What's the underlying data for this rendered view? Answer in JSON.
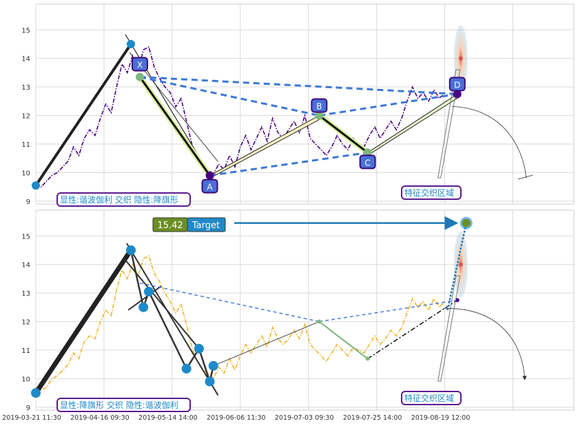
{
  "chart_data": [
    {
      "type": "line",
      "panel": "top",
      "grid": true,
      "ylim": [
        8.9,
        15.9
      ],
      "y_ticks": [
        "9",
        "10",
        "11",
        "12",
        "13",
        "14",
        "15"
      ],
      "series": [
        {
          "color": "#4b0082",
          "style": "dash-dot",
          "x": [
            0,
            3,
            6,
            9,
            12,
            15,
            18,
            21,
            24,
            27,
            30,
            33,
            36,
            39,
            42,
            45,
            48,
            51,
            54,
            57,
            60,
            63,
            66,
            69,
            72,
            75,
            78,
            81,
            84,
            87,
            90,
            93,
            96,
            99,
            102,
            105,
            108,
            111,
            114,
            117,
            120,
            123,
            126,
            129,
            132,
            135,
            138,
            141,
            144,
            147,
            150,
            153,
            156,
            159,
            162,
            165,
            168,
            171,
            174,
            177,
            180,
            183,
            186,
            189,
            192,
            195,
            198,
            201,
            204,
            207,
            210,
            213,
            216,
            219,
            222,
            225,
            228
          ],
          "y": [
            9.6,
            9.5,
            9.7,
            9.9,
            10.0,
            10.2,
            10.4,
            10.9,
            10.6,
            11.2,
            11.5,
            11.3,
            11.9,
            12.4,
            12.1,
            13.0,
            13.8,
            13.5,
            14.1,
            13.6,
            14.3,
            14.4,
            13.7,
            13.3,
            13.0,
            12.8,
            12.3,
            12.6,
            11.8,
            11.0,
            10.5,
            10.2,
            10.1,
            9.95,
            10.3,
            10.1,
            10.6,
            10.2,
            10.9,
            11.3,
            10.8,
            11.2,
            11.6,
            11.1,
            11.9,
            11.4,
            11.2,
            11.5,
            11.8,
            11.4,
            12.0,
            11.2,
            11.0,
            10.8,
            10.6,
            10.9,
            11.3,
            11.0,
            10.8,
            11.2,
            11.0,
            10.9,
            11.3,
            11.6,
            11.2,
            11.5,
            11.8,
            11.5,
            11.9,
            12.5,
            13.0,
            12.6,
            12.8,
            12.5,
            12.9,
            12.6,
            12.8
          ]
        }
      ],
      "pattern_points": [
        {
          "label": "X",
          "x": 58,
          "y": 13.35
        },
        {
          "label": "A",
          "x": 97,
          "y": 9.9
        },
        {
          "label": "B",
          "x": 158,
          "y": 12.0
        },
        {
          "label": "C",
          "x": 185,
          "y": 10.7
        },
        {
          "label": "D",
          "x": 235,
          "y": 12.75
        }
      ],
      "swing_points": [
        {
          "x": 0,
          "y": 9.55
        },
        {
          "x": 53,
          "y": 14.5
        }
      ],
      "annotations": [
        "显性:谐波伽利 交织 隐性:降旗形",
        "特征交织区域"
      ]
    },
    {
      "type": "line",
      "panel": "bottom",
      "grid": true,
      "ylim": [
        8.9,
        15.9
      ],
      "y_ticks": [
        "9",
        "10",
        "11",
        "12",
        "13",
        "14",
        "15"
      ],
      "x_tick_labels": [
        "2019-03-21 11:30",
        "2019-04-16 09:30",
        "2019-05-14 14:00",
        "2019-06-06 11:30",
        "2019-07-03 09:30",
        "2019-07-25 14:00",
        "2019-08-19 12:00"
      ],
      "series": [
        {
          "color": "#f0b429",
          "style": "dash-dot",
          "x": [
            0,
            3,
            6,
            9,
            12,
            15,
            18,
            21,
            24,
            27,
            30,
            33,
            36,
            39,
            42,
            45,
            48,
            51,
            54,
            57,
            60,
            63,
            66,
            69,
            72,
            75,
            78,
            81,
            84,
            87,
            90,
            93,
            96,
            99,
            102,
            105,
            108,
            111,
            114,
            117,
            120,
            123,
            126,
            129,
            132,
            135,
            138,
            141,
            144,
            147,
            150,
            153,
            156,
            159,
            162,
            165,
            168,
            171,
            174,
            177,
            180,
            183,
            186,
            189,
            192,
            195,
            198,
            201,
            204,
            207,
            210,
            213,
            216,
            219,
            222,
            225,
            228
          ],
          "y": [
            9.7,
            9.6,
            9.7,
            10.0,
            10.1,
            10.3,
            10.5,
            10.9,
            10.7,
            11.3,
            11.5,
            11.4,
            12.0,
            12.4,
            12.2,
            13.1,
            13.8,
            13.5,
            14.0,
            13.6,
            14.2,
            14.3,
            13.7,
            13.4,
            13.0,
            12.7,
            12.3,
            12.6,
            11.9,
            11.1,
            10.6,
            10.3,
            10.2,
            10.0,
            10.4,
            10.2,
            10.7,
            10.3,
            10.8,
            11.2,
            10.9,
            11.2,
            11.5,
            11.1,
            11.8,
            11.4,
            11.2,
            11.4,
            11.7,
            11.4,
            11.9,
            11.2,
            11.0,
            10.8,
            10.6,
            10.9,
            11.2,
            11.0,
            10.8,
            11.1,
            11.0,
            10.9,
            11.2,
            11.5,
            11.2,
            11.4,
            11.7,
            11.5,
            11.8,
            12.3,
            12.8,
            12.5,
            12.7,
            12.4,
            12.8,
            12.5,
            12.7
          ]
        }
      ],
      "wave_points": [
        {
          "x": 0,
          "y": 9.5
        },
        {
          "x": 53,
          "y": 14.5
        },
        {
          "x": 63,
          "y": 13.05
        },
        {
          "x": 60,
          "y": 12.5
        },
        {
          "x": 91,
          "y": 11.05
        },
        {
          "x": 84,
          "y": 10.35
        },
        {
          "x": 97,
          "y": 9.9
        },
        {
          "x": 99,
          "y": 10.45
        }
      ],
      "target": {
        "value": "15.42",
        "label": "Target",
        "y": 15.45
      },
      "annotations": [
        "显性:降旗形 交织 隐性:谐波伽利",
        "特征交织区域"
      ]
    }
  ]
}
